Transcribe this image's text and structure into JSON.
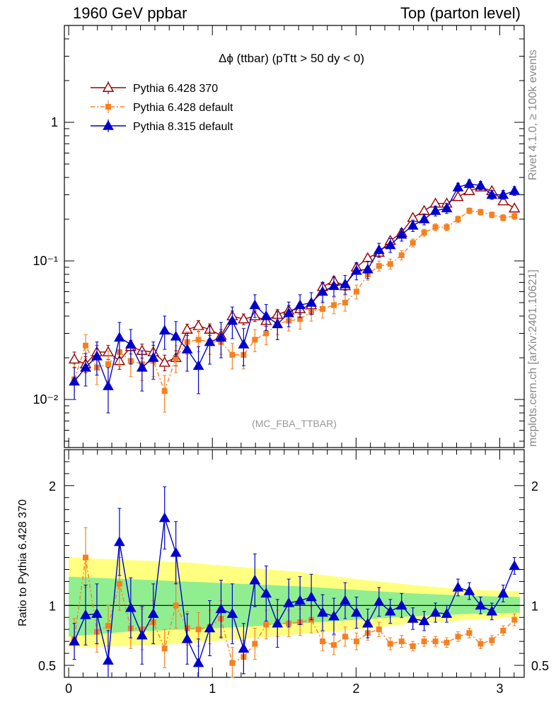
{
  "header": {
    "left": "1960 GeV ppbar",
    "right": "Top (parton level)"
  },
  "side_text": {
    "rivet": "Rivet 4.1.0, ≥ 100k events",
    "mcplots": "mcplots.cern.ch [arXiv:2401.10621]"
  },
  "colors": {
    "p6_370": "#990000",
    "p6_default": "#f58020",
    "p8_default": "#0000cc",
    "band_inner": "#90ee90",
    "band_outer": "#ffff80"
  },
  "chart_data": {
    "type": "line",
    "title": "Δϕ (ttbar) (pTtt > 50 dy < 0)",
    "watermark": "(MC_FBA_TTBAR)",
    "xlabel": "",
    "ylabel": "",
    "ratio_ylabel": "Ratio to Pythia 6.428 370",
    "xlim": [
      -0.03,
      3.17
    ],
    "ylim": [
      0.0045,
      5.0
    ],
    "yscale": "log",
    "ratio_ylim": [
      0.4,
      2.3
    ],
    "x_ticks": [
      "0",
      "1",
      "2",
      "3"
    ],
    "y_ticks": [
      "10⁻²",
      "10⁻¹",
      "1"
    ],
    "ratio_ticks": [
      "0.5",
      "1",
      "2"
    ],
    "legend": [
      "Pythia 6.428 370",
      "Pythia 6.428 default",
      "Pythia 8.315 default"
    ],
    "legend_position": "top-left",
    "x": [
      0.0393,
      0.1178,
      0.1963,
      0.2749,
      0.3534,
      0.432,
      0.5105,
      0.589,
      0.6676,
      0.7461,
      0.8247,
      0.9032,
      0.9817,
      1.0603,
      1.1388,
      1.2174,
      1.2959,
      1.3744,
      1.453,
      1.5315,
      1.6101,
      1.6886,
      1.7671,
      1.8457,
      1.9242,
      2.0028,
      2.0813,
      2.1598,
      2.2384,
      2.3169,
      2.3955,
      2.474,
      2.5525,
      2.6311,
      2.7096,
      2.7882,
      2.8667,
      2.9452,
      3.0238,
      3.1023
    ],
    "series": [
      {
        "name": "Pythia 6.428 370",
        "color": "#990000",
        "marker": "open-triangle",
        "values": [
          0.0195,
          0.018,
          0.022,
          0.022,
          0.019,
          0.024,
          0.0225,
          0.022,
          0.0185,
          0.02,
          0.032,
          0.034,
          0.032,
          0.029,
          0.04,
          0.038,
          0.04,
          0.037,
          0.041,
          0.044,
          0.045,
          0.048,
          0.065,
          0.072,
          0.066,
          0.09,
          0.105,
          0.115,
          0.14,
          0.16,
          0.205,
          0.23,
          0.26,
          0.26,
          0.29,
          0.32,
          0.34,
          0.32,
          0.27,
          0.24
        ],
        "errors": [
          0.0025,
          0.0024,
          0.0026,
          0.0026,
          0.0025,
          0.0027,
          0.0026,
          0.0026,
          0.0024,
          0.0025,
          0.003,
          0.0031,
          0.0031,
          0.003,
          0.0035,
          0.0034,
          0.0035,
          0.0033,
          0.0035,
          0.0037,
          0.0037,
          0.0038,
          0.0045,
          0.0048,
          0.0046,
          0.0055,
          0.006,
          0.0063,
          0.007,
          0.0075,
          0.0085,
          0.009,
          0.0095,
          0.0095,
          0.01,
          0.0105,
          0.011,
          0.0105,
          0.0095,
          0.009
        ],
        "ratio": [
          1,
          1,
          1,
          1,
          1,
          1,
          1,
          1,
          1,
          1,
          1,
          1,
          1,
          1,
          1,
          1,
          1,
          1,
          1,
          1,
          1,
          1,
          1,
          1,
          1,
          1,
          1,
          1,
          1,
          1,
          1,
          1,
          1,
          1,
          1,
          1,
          1,
          1,
          1,
          1
        ]
      },
      {
        "name": "Pythia 6.428 default",
        "color": "#f58020",
        "marker": "filled-square",
        "values": [
          0.014,
          0.0245,
          0.017,
          0.018,
          0.022,
          0.019,
          0.018,
          0.019,
          0.0115,
          0.02,
          0.026,
          0.027,
          0.026,
          0.026,
          0.021,
          0.021,
          0.027,
          0.03,
          0.035,
          0.037,
          0.038,
          0.043,
          0.045,
          0.048,
          0.05,
          0.06,
          0.08,
          0.092,
          0.095,
          0.11,
          0.135,
          0.16,
          0.175,
          0.175,
          0.2,
          0.23,
          0.225,
          0.215,
          0.205,
          0.21
        ],
        "errors": [
          0.004,
          0.0048,
          0.0042,
          0.0043,
          0.0046,
          0.0044,
          0.0043,
          0.0044,
          0.0034,
          0.0044,
          0.0048,
          0.0049,
          0.0048,
          0.0048,
          0.0044,
          0.0044,
          0.0049,
          0.0052,
          0.0056,
          0.0058,
          0.0058,
          0.0062,
          0.0063,
          0.0065,
          0.0066,
          0.007,
          0.0075,
          0.0078,
          0.008,
          0.0085,
          0.009,
          0.0095,
          0.01,
          0.01,
          0.0105,
          0.011,
          0.011,
          0.0105,
          0.0105,
          0.0105
        ],
        "ratio": [
          0.72,
          1.4,
          0.78,
          0.83,
          1.18,
          0.81,
          0.8,
          0.86,
          0.64,
          1.0,
          0.81,
          0.8,
          0.82,
          0.89,
          0.52,
          0.57,
          0.68,
          0.84,
          0.85,
          0.85,
          0.86,
          0.88,
          0.7,
          0.67,
          0.74,
          0.7,
          0.77,
          0.8,
          0.68,
          0.7,
          0.66,
          0.7,
          0.7,
          0.69,
          0.74,
          0.77,
          0.68,
          0.71,
          0.79,
          0.88
        ],
        "ratio_errors": [
          0.17,
          0.25,
          0.17,
          0.17,
          0.22,
          0.17,
          0.17,
          0.18,
          0.16,
          0.19,
          0.14,
          0.14,
          0.14,
          0.15,
          0.13,
          0.14,
          0.13,
          0.12,
          0.11,
          0.11,
          0.11,
          0.11,
          0.08,
          0.08,
          0.08,
          0.07,
          0.06,
          0.06,
          0.05,
          0.05,
          0.04,
          0.04,
          0.04,
          0.04,
          0.04,
          0.04,
          0.04,
          0.04,
          0.04,
          0.05
        ]
      },
      {
        "name": "Pythia 8.315 default",
        "color": "#0000cc",
        "marker": "filled-triangle",
        "values": [
          0.0135,
          0.017,
          0.0205,
          0.0125,
          0.028,
          0.025,
          0.017,
          0.02,
          0.0315,
          0.0285,
          0.023,
          0.0175,
          0.026,
          0.028,
          0.037,
          0.025,
          0.048,
          0.04,
          0.035,
          0.042,
          0.048,
          0.05,
          0.06,
          0.066,
          0.068,
          0.085,
          0.087,
          0.12,
          0.13,
          0.155,
          0.18,
          0.2,
          0.23,
          0.24,
          0.34,
          0.36,
          0.35,
          0.3,
          0.3,
          0.32
        ],
        "errors": [
          0.0035,
          0.0045,
          0.0055,
          0.0045,
          0.008,
          0.007,
          0.0055,
          0.006,
          0.0085,
          0.008,
          0.007,
          0.0065,
          0.008,
          0.008,
          0.0095,
          0.0075,
          0.009,
          0.0085,
          0.008,
          0.0085,
          0.009,
          0.009,
          0.01,
          0.0105,
          0.0105,
          0.012,
          0.0125,
          0.014,
          0.015,
          0.016,
          0.017,
          0.018,
          0.019,
          0.02,
          0.023,
          0.024,
          0.024,
          0.022,
          0.022,
          0.023
        ],
        "ratio": [
          0.7,
          0.92,
          0.93,
          0.54,
          1.53,
          0.98,
          0.75,
          0.93,
          1.73,
          1.44,
          0.72,
          0.52,
          0.81,
          0.97,
          0.93,
          0.64,
          1.21,
          1.1,
          0.85,
          1.02,
          1.04,
          1.07,
          0.94,
          0.91,
          1.04,
          0.94,
          0.85,
          1.03,
          0.95,
          1.0,
          0.89,
          0.87,
          0.94,
          0.93,
          1.15,
          1.12,
          1.0,
          0.95,
          1.1,
          1.33
        ],
        "ratio_errors": [
          0.15,
          0.25,
          0.25,
          0.25,
          0.28,
          0.25,
          0.24,
          0.25,
          0.26,
          0.26,
          0.21,
          0.2,
          0.23,
          0.24,
          0.25,
          0.21,
          0.22,
          0.23,
          0.2,
          0.2,
          0.2,
          0.19,
          0.15,
          0.15,
          0.15,
          0.13,
          0.12,
          0.12,
          0.1,
          0.1,
          0.09,
          0.08,
          0.08,
          0.07,
          0.07,
          0.07,
          0.07,
          0.07,
          0.07,
          0.07
        ]
      }
    ],
    "bands": {
      "inner": {
        "x": [
          0.0,
          0.4,
          0.8,
          1.2,
          1.6,
          2.0,
          2.4,
          2.8,
          3.14
        ],
        "lower": [
          0.74,
          0.78,
          0.8,
          0.82,
          0.85,
          0.88,
          0.91,
          0.93,
          0.94
        ],
        "upper": [
          1.24,
          1.22,
          1.2,
          1.18,
          1.16,
          1.13,
          1.1,
          1.08,
          1.07
        ]
      },
      "outer": {
        "x": [
          0.0,
          0.4,
          0.8,
          1.2,
          1.6,
          2.0,
          2.4,
          2.8,
          3.14
        ],
        "lower": [
          0.65,
          0.66,
          0.68,
          0.72,
          0.76,
          0.8,
          0.85,
          0.88,
          0.9
        ],
        "upper": [
          1.4,
          1.38,
          1.36,
          1.32,
          1.28,
          1.22,
          1.17,
          1.13,
          1.12
        ]
      }
    }
  }
}
